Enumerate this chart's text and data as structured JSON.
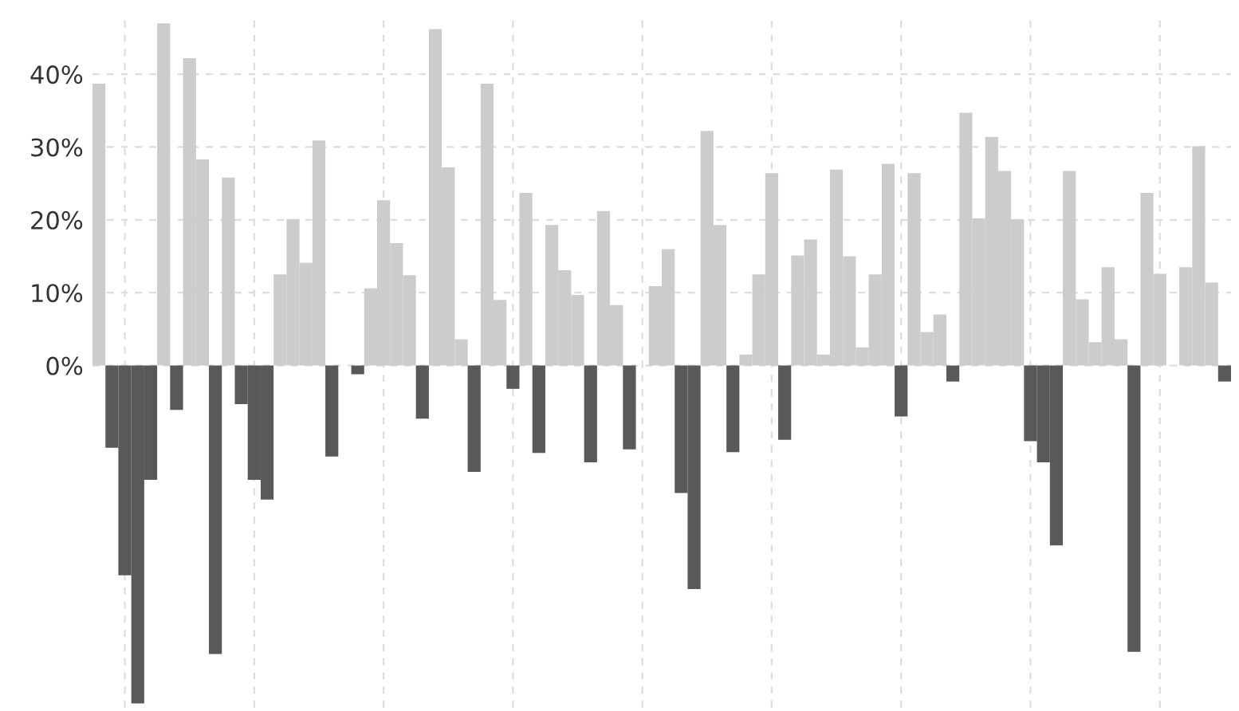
{
  "chart_data": {
    "type": "bar",
    "categories": [
      null,
      null,
      null,
      null,
      null,
      null,
      null,
      null,
      null,
      null,
      null,
      null,
      null,
      null,
      null,
      null,
      null,
      null,
      null,
      null,
      null,
      null,
      null,
      null,
      null,
      null,
      null,
      null,
      null,
      null,
      null,
      null,
      null,
      null,
      null,
      null,
      null,
      null,
      null,
      null,
      null,
      null,
      null,
      null,
      null,
      null,
      null,
      null,
      null,
      null,
      null,
      null,
      null,
      null,
      null,
      null,
      null,
      null,
      null,
      null,
      null,
      null,
      null,
      null,
      null,
      null,
      null,
      null,
      null,
      null,
      null,
      null,
      null,
      null,
      null,
      null,
      null,
      null,
      null,
      null,
      null,
      null,
      null,
      null,
      null,
      null,
      null,
      null
    ],
    "values": [
      38.7,
      -11.3,
      -28.8,
      -46.4,
      -15.7,
      47.0,
      -6.1,
      42.2,
      28.3,
      -39.6,
      25.8,
      -5.3,
      -15.7,
      -18.4,
      12.5,
      20.1,
      14.1,
      30.9,
      -12.5,
      null,
      -1.2,
      10.6,
      22.7,
      16.8,
      12.4,
      -7.3,
      46.2,
      27.2,
      3.6,
      -14.6,
      38.7,
      9.0,
      -3.2,
      23.7,
      -12.0,
      19.3,
      13.1,
      9.7,
      -13.3,
      21.2,
      8.3,
      -11.5,
      null,
      10.9,
      16.0,
      -17.5,
      -30.7,
      32.2,
      19.3,
      -11.9,
      1.5,
      12.5,
      26.4,
      -10.2,
      15.1,
      17.3,
      1.5,
      26.9,
      15.0,
      2.5,
      12.5,
      27.7,
      -7.0,
      26.4,
      4.6,
      7.0,
      -2.2,
      34.7,
      20.2,
      31.4,
      26.7,
      20.1,
      -10.4,
      -13.3,
      -24.7,
      26.7,
      9.1,
      3.2,
      13.5,
      3.6,
      -39.3,
      23.7,
      12.6,
      null,
      13.5,
      30.1,
      11.4,
      -2.2
    ],
    "colors": [
      "#cccccc",
      "#595959",
      "#595959",
      "#595959",
      "#595959",
      "#cccccc",
      "#595959",
      "#cccccc",
      "#cccccc",
      "#595959",
      "#cccccc",
      "#595959",
      "#595959",
      "#595959",
      "#cccccc",
      "#cccccc",
      "#cccccc",
      "#cccccc",
      "#595959",
      "#cccccc",
      "#595959",
      "#cccccc",
      "#cccccc",
      "#cccccc",
      "#cccccc",
      "#595959",
      "#cccccc",
      "#cccccc",
      "#cccccc",
      "#595959",
      "#cccccc",
      "#cccccc",
      "#595959",
      "#cccccc",
      "#595959",
      "#cccccc",
      "#cccccc",
      "#cccccc",
      "#595959",
      "#cccccc",
      "#cccccc",
      "#595959",
      "#cccccc",
      "#cccccc",
      "#cccccc",
      "#595959",
      "#595959",
      "#cccccc",
      "#cccccc",
      "#595959",
      "#cccccc",
      "#cccccc",
      "#cccccc",
      "#595959",
      "#cccccc",
      "#cccccc",
      "#cccccc",
      "#cccccc",
      "#cccccc",
      "#cccccc",
      "#cccccc",
      "#cccccc",
      "#595959",
      "#cccccc",
      "#cccccc",
      "#cccccc",
      "#595959",
      "#cccccc",
      "#cccccc",
      "#cccccc",
      "#cccccc",
      "#cccccc",
      "#595959",
      "#595959",
      "#595959",
      "#cccccc",
      "#cccccc",
      "#cccccc",
      "#cccccc",
      "#cccccc",
      "#595959",
      "#cccccc",
      "#cccccc",
      "#cccccc",
      "#cccccc",
      "#cccccc",
      "#cccccc",
      "#595959"
    ],
    "ylim": [
      -47,
      48
    ],
    "yticks": [
      {
        "value": 0,
        "label": "0%"
      },
      {
        "value": 10,
        "label": "10%"
      },
      {
        "value": 20,
        "label": "20%"
      },
      {
        "value": 30,
        "label": "30%"
      },
      {
        "value": 40,
        "label": "40%"
      }
    ],
    "tick_labels": "y",
    "grid": true
  }
}
